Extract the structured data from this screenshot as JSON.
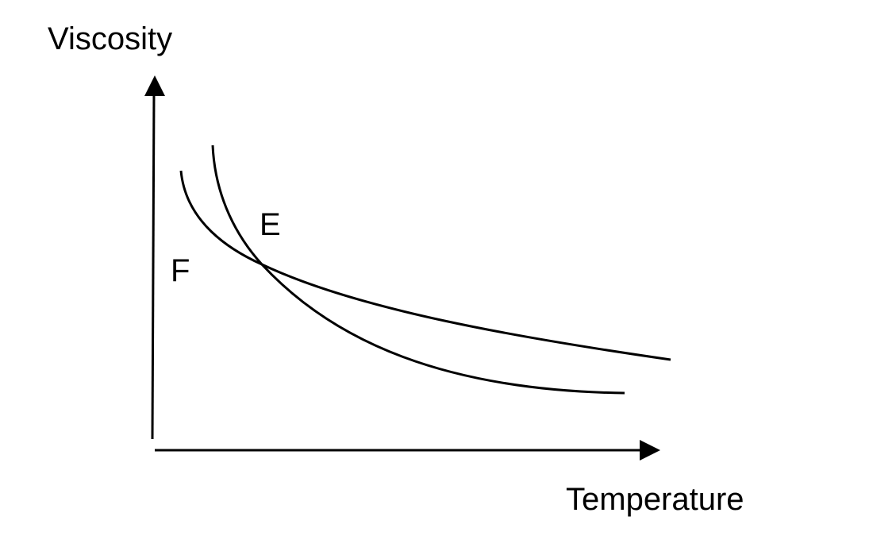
{
  "axes": {
    "y_label": "Viscosity",
    "x_label": "Temperature"
  },
  "curves": [
    {
      "label": "E"
    },
    {
      "label": "F"
    }
  ]
}
